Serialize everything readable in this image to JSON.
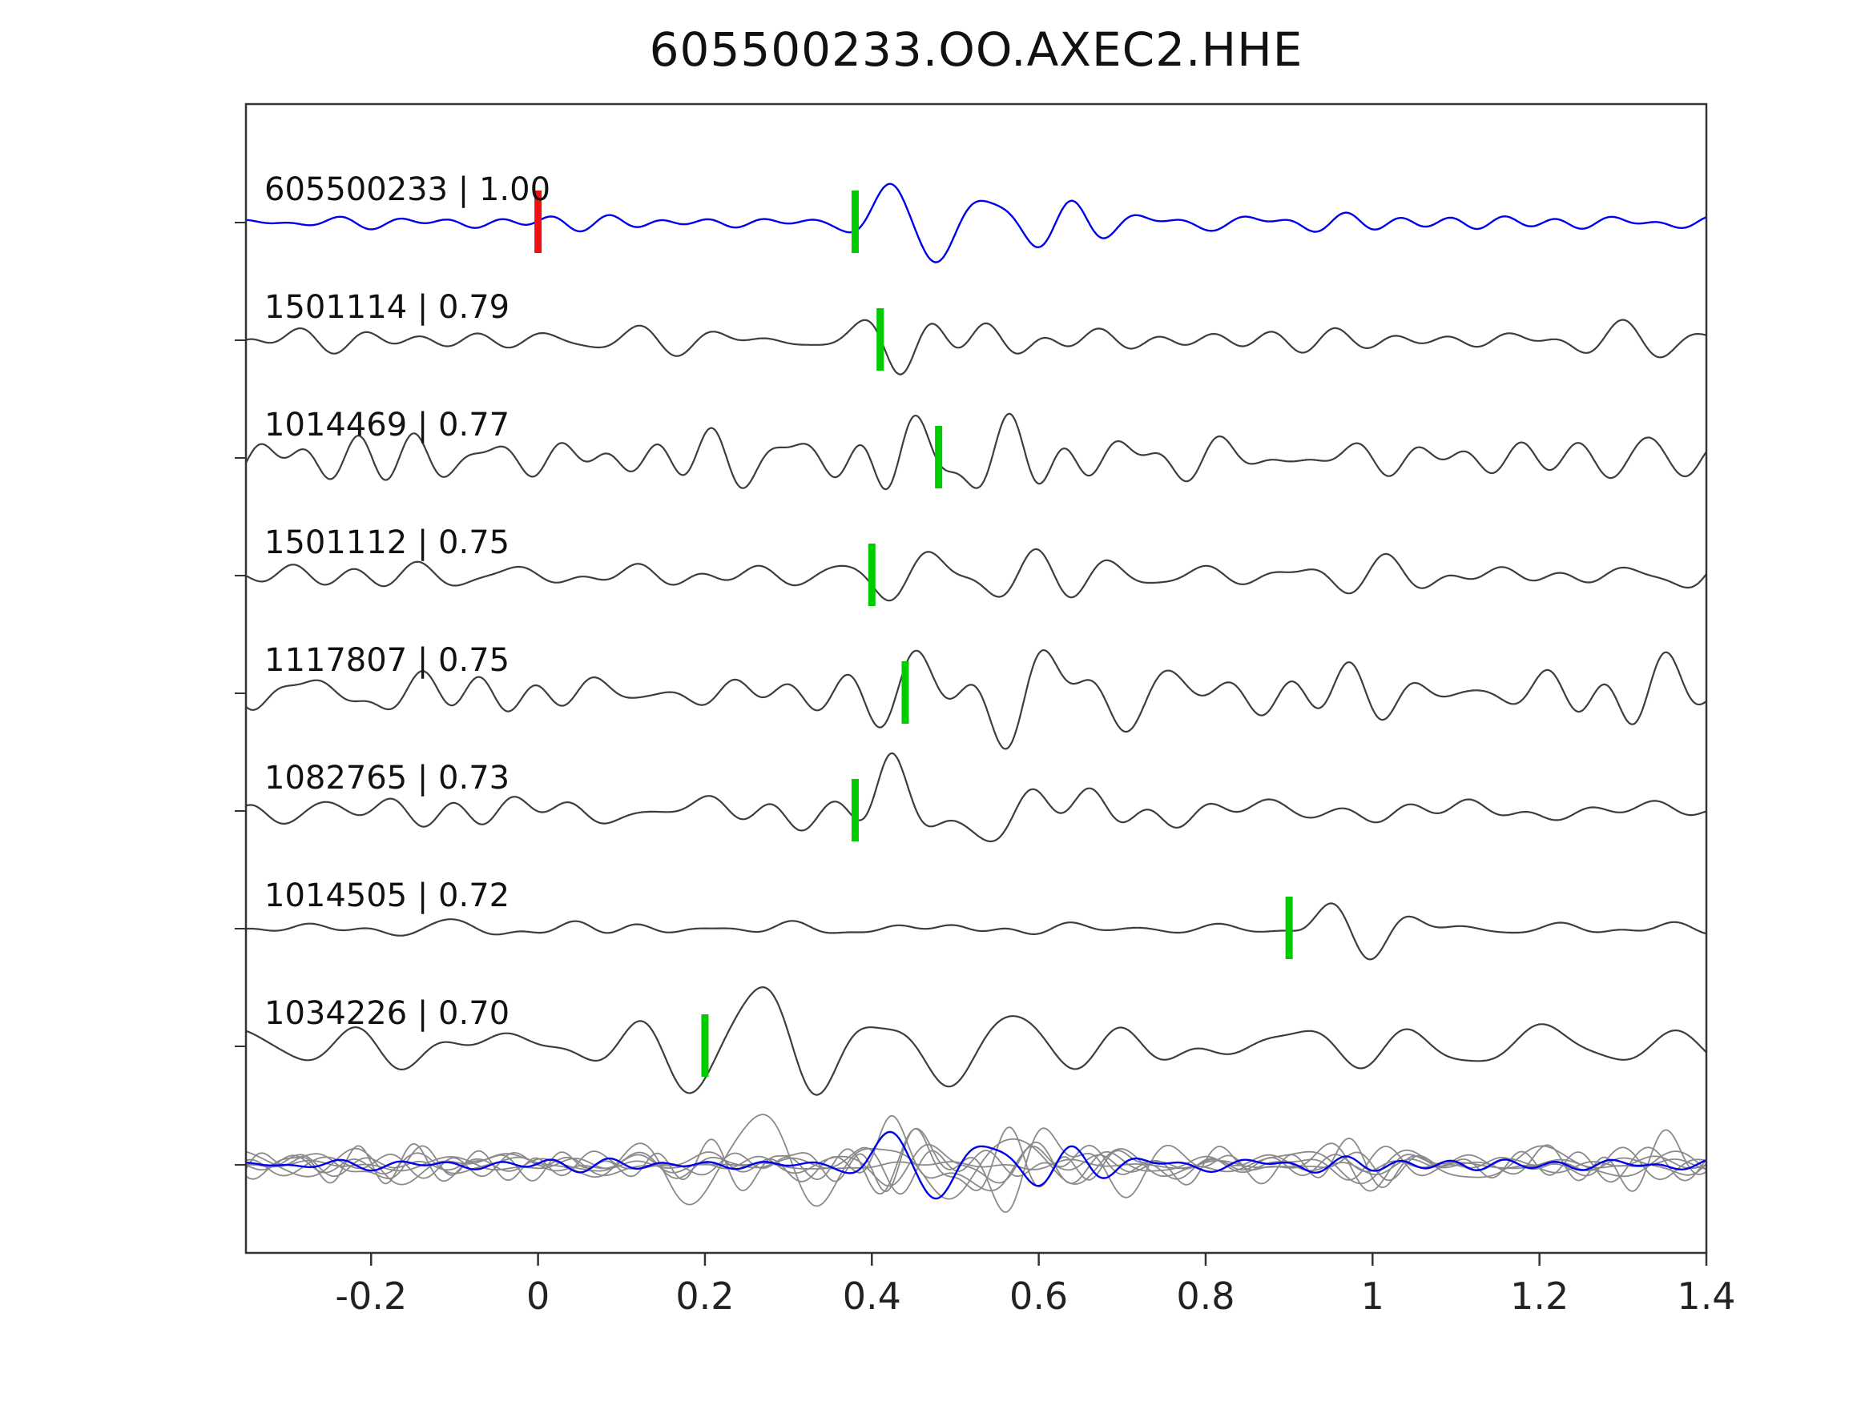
{
  "title": "605500233.OO.AXEC2.HHE",
  "chart_data": {
    "type": "line",
    "title": "605500233.OO.AXEC2.HHE",
    "xlabel": "",
    "ylabel": "",
    "xlim": [
      -0.35,
      1.4
    ],
    "x_ticks": [
      -0.2,
      0,
      0.2,
      0.4,
      0.6,
      0.8,
      1,
      1.2,
      1.4
    ],
    "x_tick_labels": [
      "-0.2",
      "0",
      "0.2",
      "0.4",
      "0.6",
      "0.8",
      "1",
      "1.2",
      "1.4"
    ],
    "grid": false,
    "legend": "none",
    "colors": {
      "reference_trace": "#0000ee",
      "candidate_trace": "#3d3d3d",
      "overlay_trace": "#8a8a8a",
      "pick_marker": "#00cc00",
      "origin_marker": "#ee1111",
      "axis": "#333333",
      "label_text": "#111111"
    },
    "traces": [
      {
        "id": "605500233",
        "correlation": "1.00",
        "label": "605500233 | 1.00",
        "pick_x": 0.38,
        "origin_x": 0,
        "is_reference": true
      },
      {
        "id": "1501114",
        "correlation": "0.79",
        "label": "1501114 | 0.79",
        "pick_x": 0.41
      },
      {
        "id": "1014469",
        "correlation": "0.77",
        "label": "1014469 | 0.77",
        "pick_x": 0.48
      },
      {
        "id": "1501112",
        "correlation": "0.75",
        "label": "1501112 | 0.75",
        "pick_x": 0.4
      },
      {
        "id": "1117807",
        "correlation": "0.75",
        "label": "1117807 | 0.75",
        "pick_x": 0.44
      },
      {
        "id": "1082765",
        "correlation": "0.73",
        "label": "1082765 | 0.73",
        "pick_x": 0.38
      },
      {
        "id": "1014505",
        "correlation": "0.72",
        "label": "1014505 | 0.72",
        "pick_x": 0.9
      },
      {
        "id": "1034226",
        "correlation": "0.70",
        "label": "1034226 | 0.70",
        "pick_x": 0.2
      }
    ],
    "overlay_row": {
      "description": "all candidate traces overlaid in gray with reference trace in blue"
    }
  }
}
